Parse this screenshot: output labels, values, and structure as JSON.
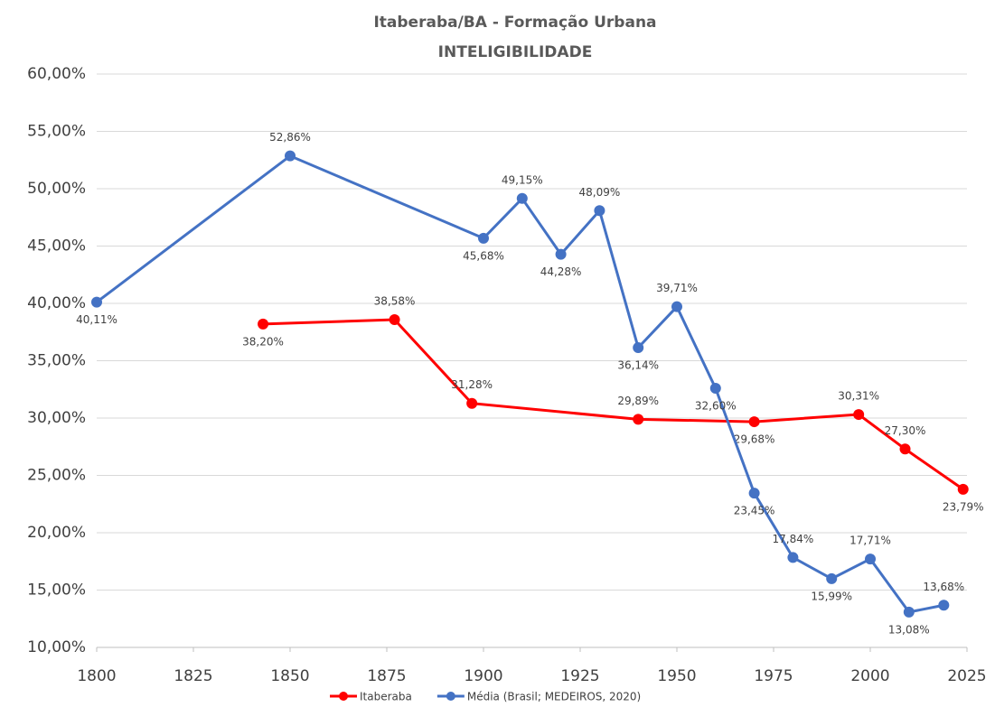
{
  "chart_data": {
    "type": "line",
    "title": "Itaberaba/BA - Formação Urbana",
    "subtitle": "INTELIGIBILIDADE",
    "xlim": [
      1800,
      2025
    ],
    "xticks": [
      1800,
      1825,
      1850,
      1875,
      1900,
      1925,
      1950,
      1975,
      2000,
      2025
    ],
    "ylim": [
      10,
      60
    ],
    "yticks": [
      {
        "value": 10,
        "label": "10,00%"
      },
      {
        "value": 15,
        "label": "15,00%"
      },
      {
        "value": 20,
        "label": "20,00%"
      },
      {
        "value": 25,
        "label": "25,00%"
      },
      {
        "value": 30,
        "label": "30,00%"
      },
      {
        "value": 35,
        "label": "35,00%"
      },
      {
        "value": 40,
        "label": "40,00%"
      },
      {
        "value": 45,
        "label": "45,00%"
      },
      {
        "value": 50,
        "label": "50,00%"
      },
      {
        "value": 55,
        "label": "55,00%"
      },
      {
        "value": 60,
        "label": "60,00%"
      }
    ],
    "grid": true,
    "legend": "bottom",
    "series": [
      {
        "name": "Itaberaba",
        "color": "#ff0000",
        "x": [
          1843,
          1877,
          1897,
          1940,
          1970,
          1997,
          2009,
          2024
        ],
        "values": [
          38.2,
          38.58,
          31.28,
          29.89,
          29.68,
          30.31,
          27.3,
          23.79
        ],
        "value_labels": [
          "38,20%",
          "38,58%",
          "31,28%",
          "29,89%",
          "29,68%",
          "30,31%",
          "27,30%",
          "23,79%"
        ]
      },
      {
        "name": "Média (Brasil; MEDEIROS, 2020)",
        "color": "#4472c4",
        "x": [
          1800,
          1850,
          1900,
          1910,
          1920,
          1930,
          1940,
          1950,
          1960,
          1970,
          1980,
          1990,
          2000,
          2010,
          2019
        ],
        "values": [
          40.11,
          52.86,
          45.68,
          49.15,
          44.28,
          48.09,
          36.14,
          39.71,
          32.6,
          23.45,
          17.84,
          15.99,
          17.71,
          13.08,
          13.68
        ],
        "value_labels": [
          "40,11%",
          "52,86%",
          "45,68%",
          "49,15%",
          "44,28%",
          "48,09%",
          "36,14%",
          "39,71%",
          "32,60%",
          "23,45%",
          "17,84%",
          "15,99%",
          "17,71%",
          "13,08%",
          "13,68%"
        ]
      }
    ]
  }
}
